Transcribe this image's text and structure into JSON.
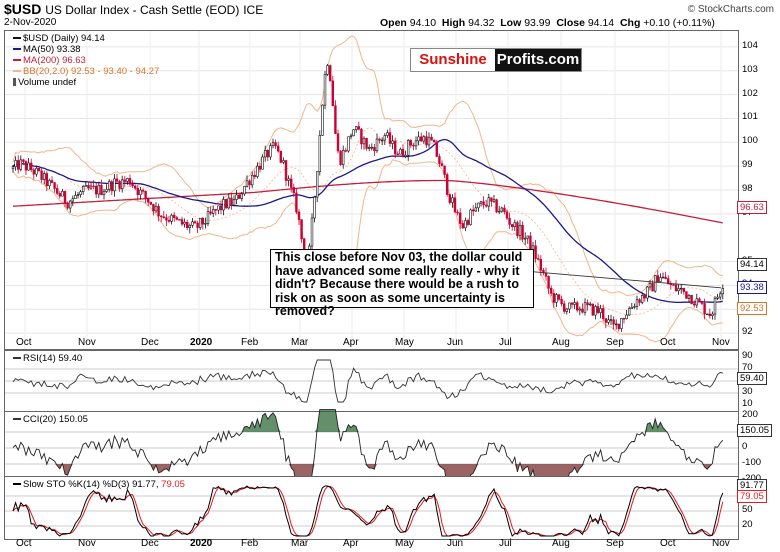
{
  "header": {
    "symbol": "$USD",
    "name": "US Dollar Index - Cash Settle (EOD)",
    "exchange": "ICE",
    "date": "2-Nov-2020",
    "copyright": "© StockCharts.com",
    "open_label": "Open",
    "open": "94.10",
    "high_label": "High",
    "high": "94.32",
    "low_label": "Low",
    "low": "93.99",
    "close_label": "Close",
    "close": "94.14",
    "chg_label": "Chg",
    "chg": "+0.10 (+0.11%)"
  },
  "legend": {
    "price": "$USD (Daily) 94.14",
    "ma50": "MA(50) 93.38",
    "ma200": "MA(200) 96.63",
    "bb": "BB(20,2.0) 92.53 - 93.40 - 94.27",
    "volume": "Volume undef"
  },
  "logo": {
    "part1": "Sunshine",
    "part2": "Profits.com"
  },
  "annotation": "This close before Nov 03, the dollar could have advanced some really really - why it didn't? Because there would be a rush to risk on as soon as some uncertainty is removed?",
  "colors": {
    "up": "#111111",
    "down": "#cc0033",
    "ma50": "#1a1a8c",
    "ma200": "#c41e3a",
    "bb": "#f2b58a",
    "rsi": "#333333",
    "cci_pos": "#2f6b3a",
    "cci_neg": "#7a3030",
    "sto_k": "#000000",
    "sto_d": "#e31b23"
  },
  "x_axis": {
    "labels": [
      {
        "text": "Oct",
        "bold": false
      },
      {
        "text": "Nov",
        "bold": false
      },
      {
        "text": "Dec",
        "bold": false
      },
      {
        "text": "2020",
        "bold": true
      },
      {
        "text": "Feb",
        "bold": false
      },
      {
        "text": "Mar",
        "bold": false
      },
      {
        "text": "Apr",
        "bold": false
      },
      {
        "text": "May",
        "bold": false
      },
      {
        "text": "Jun",
        "bold": false
      },
      {
        "text": "Jul",
        "bold": false
      },
      {
        "text": "Aug",
        "bold": false
      },
      {
        "text": "Sep",
        "bold": false
      },
      {
        "text": "Oct",
        "bold": false
      },
      {
        "text": "Nov",
        "bold": false
      }
    ]
  },
  "price_axis": {
    "ticks": [
      "104",
      "103",
      "102",
      "101",
      "100",
      "99",
      "98",
      "97",
      "95",
      "94",
      "93",
      "92"
    ],
    "badges": {
      "ma200": "96.63",
      "bb_upper": "94.27",
      "close": "94.14",
      "ma50": "93.38",
      "bb_lower": "92.53"
    }
  },
  "rsi": {
    "legend": "RSI(14) 59.40",
    "ticks": [
      "90",
      "70",
      "50",
      "30",
      "10"
    ],
    "badge": "59.40"
  },
  "cci": {
    "legend": "CCI(20) 150.05",
    "ticks": [
      "200",
      "100",
      "0",
      "-100",
      "-200"
    ],
    "badge": "150.05"
  },
  "sto": {
    "legend_prefix": "Slow STO %K(14) %D(3) 91.77,",
    "legend_d": "79.05",
    "ticks": [
      "80",
      "50",
      "20"
    ],
    "badge_k": "91.77",
    "badge_d": "79.05"
  },
  "chart_data": {
    "type": "candlestick",
    "title": "$USD US Dollar Index - Cash Settle (EOD) ICE",
    "ylim": [
      91.5,
      104.5
    ],
    "monthly_closes": [
      {
        "month": "Oct 2019",
        "close": 98.8
      },
      {
        "month": "Nov 2019",
        "close": 98.3
      },
      {
        "month": "Dec 2019",
        "close": 96.4
      },
      {
        "month": "Jan 2020",
        "close": 97.4
      },
      {
        "month": "Feb 2020",
        "close": 98.1
      },
      {
        "month": "Mar 2020",
        "close": 99.0
      },
      {
        "month": "Apr 2020",
        "close": 99.0
      },
      {
        "month": "May 2020",
        "close": 98.3
      },
      {
        "month": "Jun 2020",
        "close": 97.4
      },
      {
        "month": "Jul 2020",
        "close": 93.4
      },
      {
        "month": "Aug 2020",
        "close": 92.1
      },
      {
        "month": "Sep 2020",
        "close": 93.9
      },
      {
        "month": "Oct 2020",
        "close": 94.0
      },
      {
        "month": "Nov 2020",
        "close": 94.14
      }
    ],
    "key_points": [
      {
        "label": "Mar 2020 low",
        "value": 94.7
      },
      {
        "label": "Mar 2020 high",
        "value": 103.9
      },
      {
        "label": "Sep 2020 low",
        "value": 91.8
      },
      {
        "label": "Last close",
        "value": 94.14
      }
    ]
  }
}
